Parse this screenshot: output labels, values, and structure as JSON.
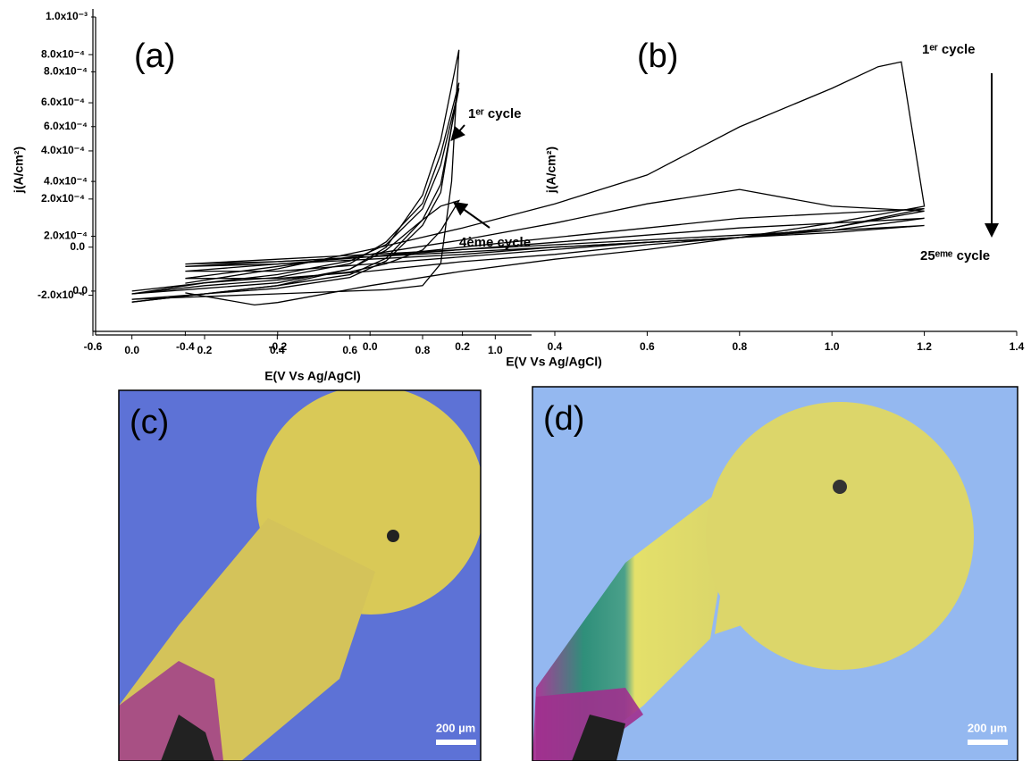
{
  "chart_data": [
    {
      "type": "line",
      "panel_label": "(a)",
      "x_label": "E(V Vs Ag/AgCl)",
      "y_label": "j(A/cm²)",
      "xlim": [
        -0.1,
        1.1
      ],
      "ylim": [
        -0.00016,
        0.001
      ],
      "xticks": [
        {
          "value": 0,
          "label": "0.0"
        },
        0.2,
        0.4,
        0.6,
        0.8,
        {
          "value": 1,
          "label": "1.0"
        }
      ],
      "yticks": [
        {
          "value": 0,
          "label": "0.0"
        },
        {
          "value": 0.0002,
          "label": "2.0x10⁻⁴"
        },
        {
          "value": 0.0004,
          "label": "4.0x10⁻⁴"
        },
        {
          "value": 0.0006,
          "label": "6.0x10⁻⁴"
        },
        {
          "value": 0.0008,
          "label": "8.0x10⁻⁴"
        },
        {
          "value": 0.001,
          "label": "1.0x10⁻³"
        }
      ],
      "annotations": [
        "1ᵉʳ cycle",
        "4ème cycle"
      ],
      "series": [
        {
          "color": "#000000",
          "x": [
            0,
            0.2,
            0.4,
            0.6,
            0.7,
            0.8,
            0.85,
            0.88,
            0.9,
            0.85,
            0.8,
            0.7,
            0.6,
            0.4,
            0.2,
            0
          ],
          "values": [
            -3e-05,
            -2e-05,
            -1e-05,
            0,
            5e-06,
            2e-05,
            0.0001,
            0.0004,
            0.00088,
            0.00055,
            0.00035,
            0.00016,
            8e-05,
            3e-05,
            1e-05,
            -1e-05
          ]
        },
        {
          "color": "#000000",
          "x": [
            0,
            0.2,
            0.4,
            0.6,
            0.7,
            0.8,
            0.85,
            0.9,
            0.85,
            0.8,
            0.7,
            0.6,
            0.4,
            0.2,
            0
          ],
          "values": [
            -3e-05,
            -1e-05,
            1e-05,
            5e-05,
            0.00011,
            0.00024,
            0.00036,
            0.00076,
            0.0005,
            0.00032,
            0.00018,
            0.0001,
            5e-05,
            3e-05,
            0
          ]
        },
        {
          "color": "#000000",
          "x": [
            0,
            0.2,
            0.4,
            0.6,
            0.7,
            0.8,
            0.85,
            0.9,
            0.85,
            0.8,
            0.7,
            0.6,
            0.4,
            0.2,
            0
          ],
          "values": [
            -4e-05,
            -1e-05,
            2e-05,
            6e-05,
            0.00012,
            0.00026,
            0.00039,
            0.00074,
            0.00046,
            0.0003,
            0.00017,
            0.00011,
            6e-05,
            3e-05,
            -1e-05
          ]
        },
        {
          "color": "#000000",
          "x": [
            0,
            0.2,
            0.4,
            0.6,
            0.7,
            0.8,
            0.85,
            0.9,
            0.85,
            0.8,
            0.7,
            0.6,
            0.4,
            0.2,
            0
          ],
          "values": [
            -4e-05,
            -1e-05,
            2e-05,
            8e-05,
            0.00015,
            0.00026,
            0.00031,
            0.00033,
            0.00022,
            0.00015,
            0.0001,
            7e-05,
            4e-05,
            2e-05,
            -1e-05
          ]
        }
      ]
    },
    {
      "type": "line",
      "panel_label": "(b)",
      "x_label": "E(V Vs Ag/AgCl)",
      "y_label": "j(A/cm²)",
      "xlim": [
        -0.6,
        1.4
      ],
      "ylim": [
        -0.00035,
        0.00099
      ],
      "xticks": [
        -0.6,
        -0.4,
        -0.2,
        {
          "value": 0,
          "label": "0.0"
        },
        0.2,
        0.4,
        0.6,
        0.8,
        {
          "value": 1,
          "label": "1.0"
        },
        1.2,
        1.4
      ],
      "yticks": [
        {
          "value": -0.0002,
          "label": "-2.0x10⁻⁴"
        },
        {
          "value": 0,
          "label": "0.0"
        },
        {
          "value": 0.0002,
          "label": "2.0x10⁻⁴"
        },
        {
          "value": 0.0004,
          "label": "4.0x10⁻⁴"
        },
        {
          "value": 0.0006,
          "label": "6.0x10⁻⁴"
        },
        {
          "value": 0.0008,
          "label": "8.0x10⁻⁴"
        }
      ],
      "annotations": [
        "1ᵉʳ cycle",
        "25ᵉᵐᵉ cycle"
      ],
      "series": [
        {
          "color": "#000000",
          "x": [
            -0.4,
            -0.2,
            0,
            0.2,
            0.4,
            0.6,
            0.8,
            1.0,
            1.1,
            1.15,
            1.2,
            1.0,
            0.8,
            0.6,
            0.4,
            0.2,
            0,
            -0.2,
            -0.25,
            -0.4
          ],
          "values": [
            -0.00015,
            -9e-05,
            -1e-05,
            8e-05,
            0.00018,
            0.0003,
            0.0005,
            0.00066,
            0.00075,
            0.00077,
            0.00017,
            0.0001,
            4e-05,
            -1e-05,
            -5e-05,
            -0.0001,
            -0.00016,
            -0.00023,
            -0.00024,
            -0.00019
          ]
        },
        {
          "color": "#000000",
          "x": [
            -0.4,
            -0.2,
            0,
            0.2,
            0.4,
            0.6,
            0.8,
            1.0,
            1.2,
            1.0,
            0.8,
            0.6,
            0.4,
            0.2,
            0,
            -0.2,
            -0.4
          ],
          "values": [
            -0.00013,
            -8e-05,
            -3e-05,
            3e-05,
            0.0001,
            0.00018,
            0.00024,
            0.00017,
            0.00015,
            8e-05,
            4e-05,
            1e-05,
            -3e-05,
            -6e-05,
            -0.0001,
            -0.00013,
            -0.00013
          ]
        },
        {
          "color": "#000000",
          "x": [
            -0.4,
            -0.2,
            0,
            0.2,
            0.4,
            0.6,
            0.8,
            1.0,
            1.2,
            1.0,
            0.8,
            0.6,
            0.4,
            0.2,
            0,
            -0.2,
            -0.4
          ],
          "values": [
            -0.0001,
            -7e-05,
            -4e-05,
            0,
            4e-05,
            8e-05,
            0.00012,
            0.00014,
            0.00016,
            8e-05,
            4e-05,
            2e-05,
            -1e-05,
            -4e-05,
            -7e-05,
            -0.0001,
            -0.0001
          ]
        },
        {
          "color": "#000000",
          "x": [
            -0.4,
            -0.2,
            0,
            0.2,
            0.4,
            0.6,
            0.8,
            1.0,
            1.2,
            1.0,
            0.8,
            0.6,
            0.4,
            0.2,
            0,
            -0.2,
            -0.4
          ],
          "values": [
            -8e-05,
            -6e-05,
            -4e-05,
            -1e-05,
            2e-05,
            5e-05,
            8e-05,
            0.0001,
            0.00012,
            7e-05,
            4e-05,
            2e-05,
            0,
            -3e-05,
            -5e-05,
            -7e-05,
            -8e-05
          ]
        },
        {
          "color": "#000000",
          "x": [
            -0.4,
            -0.2,
            0,
            0.2,
            0.4,
            0.6,
            0.8,
            1.0,
            1.2,
            1.0,
            0.8,
            0.6,
            0.4,
            0.2,
            0,
            -0.2,
            -0.4
          ],
          "values": [
            -7e-05,
            -5e-05,
            -3e-05,
            -1e-05,
            1e-05,
            3e-05,
            5e-05,
            7e-05,
            9e-05,
            6e-05,
            4e-05,
            2e-05,
            0,
            -2e-05,
            -4e-05,
            -6e-05,
            -7e-05
          ]
        }
      ]
    }
  ],
  "images": [
    {
      "panel_label": "(c)",
      "scale_bar": "200 µm"
    },
    {
      "panel_label": "(d)",
      "scale_bar": "200 µm"
    }
  ]
}
